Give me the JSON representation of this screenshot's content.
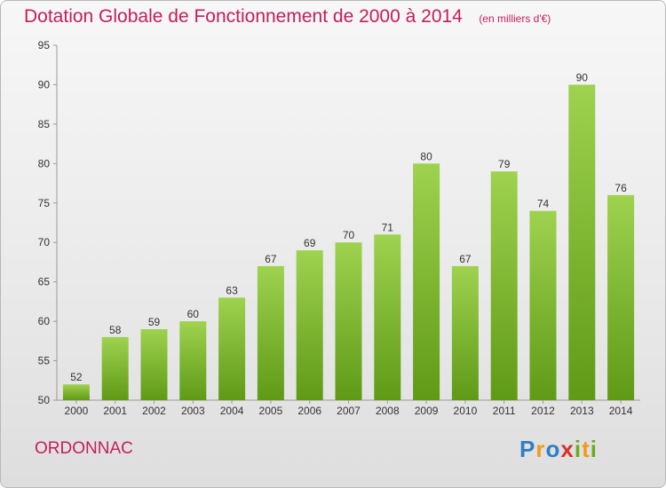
{
  "title": "Dotation Globale de Fonctionnement de 2000 à 2014",
  "unit": "(en milliers d'€)",
  "commune": "ORDONNAC",
  "logo": "Proxiti",
  "colors": {
    "title": "#c41e5b",
    "bar_top": "#9ed24f",
    "bar_bottom": "#5f9a16",
    "logo_blue": "#2f7fc4",
    "logo_orange": "#f29a1b",
    "logo_red": "#d9322a",
    "logo_green": "#6cab1f"
  },
  "chart_data": {
    "type": "bar",
    "title": "Dotation Globale de Fonctionnement de 2000 à 2014",
    "subtitle": "(en milliers d'€)",
    "categories": [
      "2000",
      "2001",
      "2002",
      "2003",
      "2004",
      "2005",
      "2006",
      "2007",
      "2008",
      "2009",
      "2010",
      "2011",
      "2012",
      "2013",
      "2014"
    ],
    "values": [
      52,
      58,
      59,
      60,
      63,
      67,
      69,
      70,
      71,
      80,
      67,
      79,
      74,
      90,
      76
    ],
    "ylim": [
      50,
      95
    ],
    "yticks": [
      50,
      55,
      60,
      65,
      70,
      75,
      80,
      85,
      90,
      95
    ],
    "grid": false,
    "legend": "none"
  }
}
